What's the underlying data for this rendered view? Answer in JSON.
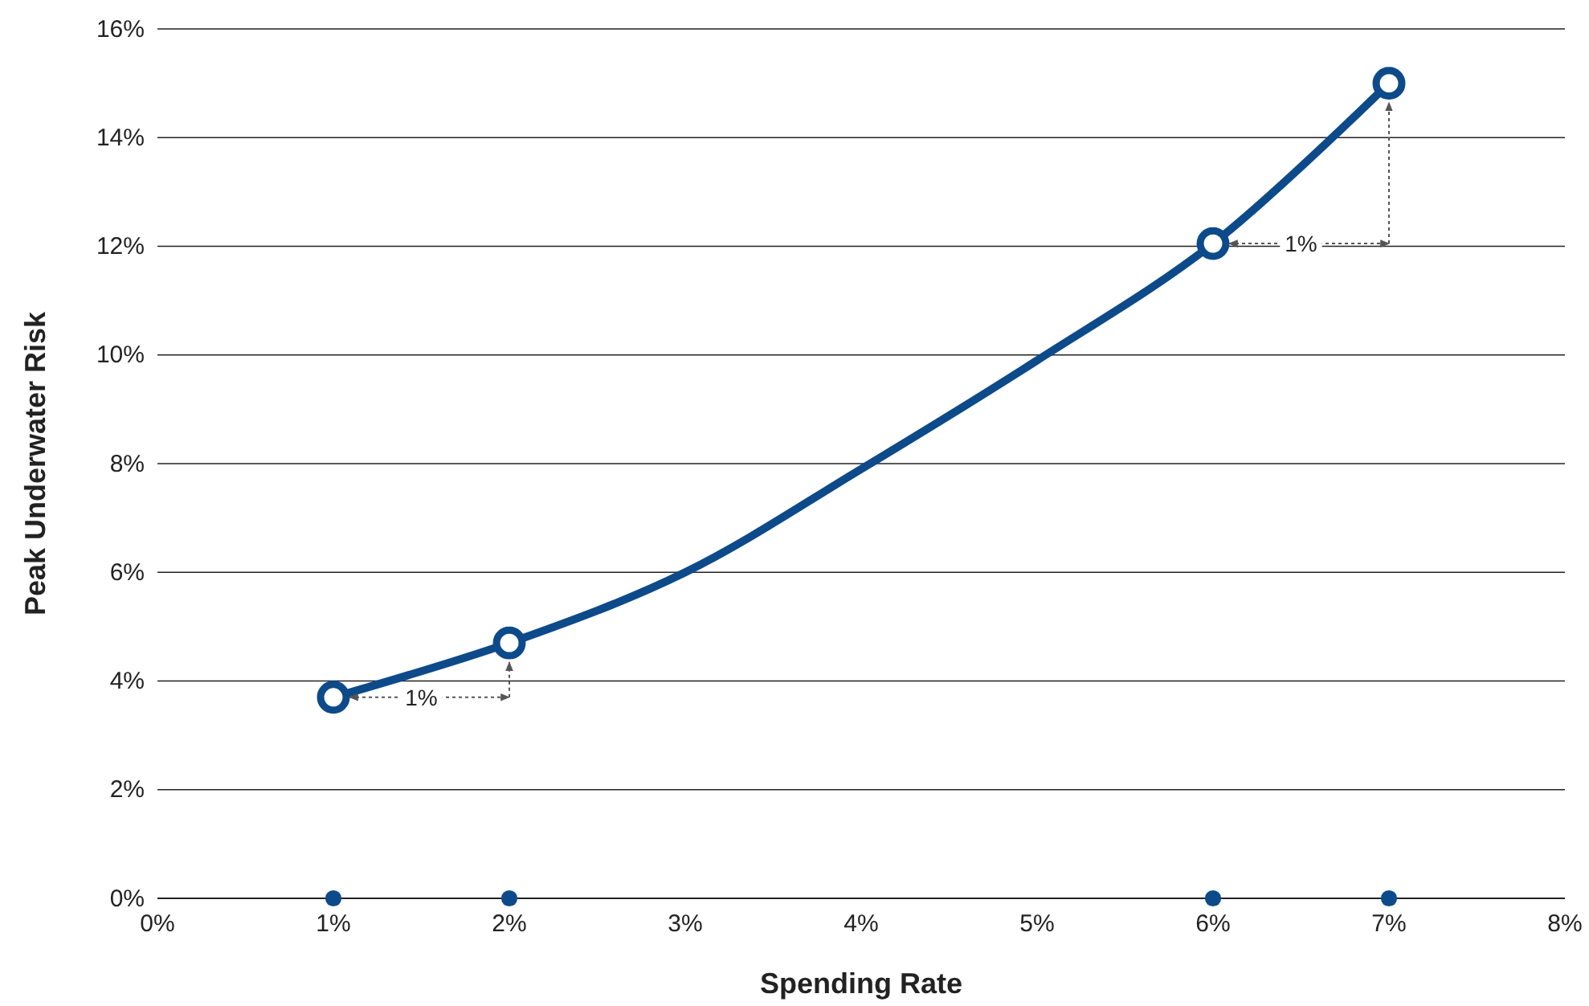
{
  "chart_data": {
    "type": "line",
    "xlabel": "Spending Rate",
    "ylabel": "Peak Underwater Risk",
    "xlim": [
      0,
      8
    ],
    "xticks": [
      {
        "value": 0,
        "label": "0%"
      },
      {
        "value": 1,
        "label": "1%"
      },
      {
        "value": 2,
        "label": "2%"
      },
      {
        "value": 3,
        "label": "3%"
      },
      {
        "value": 4,
        "label": "4%"
      },
      {
        "value": 5,
        "label": "5%"
      },
      {
        "value": 6,
        "label": "6%"
      },
      {
        "value": 7,
        "label": "7%"
      },
      {
        "value": 8,
        "label": "8%"
      }
    ],
    "ylim": [
      0,
      16
    ],
    "yticks": [
      {
        "value": 0,
        "label": "0%"
      },
      {
        "value": 2,
        "label": "2%"
      },
      {
        "value": 4,
        "label": "4%"
      },
      {
        "value": 6,
        "label": "6%"
      },
      {
        "value": 8,
        "label": "8%"
      },
      {
        "value": 10,
        "label": "10%"
      },
      {
        "value": 12,
        "label": "12%"
      },
      {
        "value": 14,
        "label": "14%"
      },
      {
        "value": 16,
        "label": "16%"
      }
    ],
    "grid": "y",
    "series": [
      {
        "x": [
          1,
          2,
          3,
          4,
          5,
          6,
          7
        ],
        "values": [
          3.7,
          4.7,
          6.0,
          7.9,
          9.9,
          12.05,
          15.0
        ],
        "color": "#0d4a8a",
        "marker": "none",
        "line_style": "solid"
      },
      {
        "type": "scatter",
        "x": [
          1,
          2,
          6,
          7
        ],
        "values": [
          3.7,
          4.7,
          12.05,
          15.0
        ],
        "color": "#0d4a8a",
        "marker": "circle"
      },
      {
        "type": "scatter",
        "x": [
          1,
          2,
          6,
          7
        ],
        "values": [
          0,
          0,
          0,
          0
        ],
        "color": "#0d4a8a",
        "marker": "circle"
      }
    ],
    "annotations": [
      {
        "text": "1%",
        "x": 1.5,
        "y": 3.7
      },
      {
        "text": "1%",
        "x": 6.5,
        "y": 12.05
      }
    ]
  }
}
